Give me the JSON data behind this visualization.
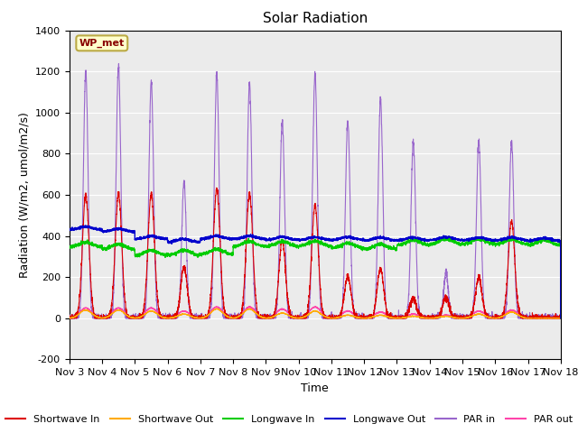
{
  "title": "Solar Radiation",
  "xlabel": "Time",
  "ylabel": "Radiation (W/m2, umol/m2/s)",
  "ylim": [
    -200,
    1400
  ],
  "xlim": [
    0,
    15
  ],
  "xtick_labels": [
    "Nov 3",
    "Nov 4",
    "Nov 5",
    "Nov 6",
    "Nov 7",
    "Nov 8",
    "Nov 9",
    "Nov 10",
    "Nov 11",
    "Nov 12",
    "Nov 13",
    "Nov 14",
    "Nov 15",
    "Nov 16",
    "Nov 17",
    "Nov 18"
  ],
  "xtick_positions": [
    0,
    1,
    2,
    3,
    4,
    5,
    6,
    7,
    8,
    9,
    10,
    11,
    12,
    13,
    14,
    15
  ],
  "ytick_labels": [
    "-200",
    "0",
    "200",
    "400",
    "600",
    "800",
    "1000",
    "1200",
    "1400"
  ],
  "ytick_values": [
    -200,
    0,
    200,
    400,
    600,
    800,
    1000,
    1200,
    1400
  ],
  "colors": {
    "shortwave_in": "#dd0000",
    "shortwave_out": "#ffaa00",
    "longwave_in": "#00cc00",
    "longwave_out": "#0000cc",
    "par_in": "#9966cc",
    "par_out": "#ff44aa"
  },
  "legend_labels": [
    "Shortwave In",
    "Shortwave Out",
    "Longwave In",
    "Longwave Out",
    "PAR in",
    "PAR out"
  ],
  "station_label": "WP_met",
  "background_color": "#e8e8e8",
  "plot_bg": "#ebebeb",
  "title_fontsize": 11,
  "label_fontsize": 9,
  "tick_fontsize": 8
}
